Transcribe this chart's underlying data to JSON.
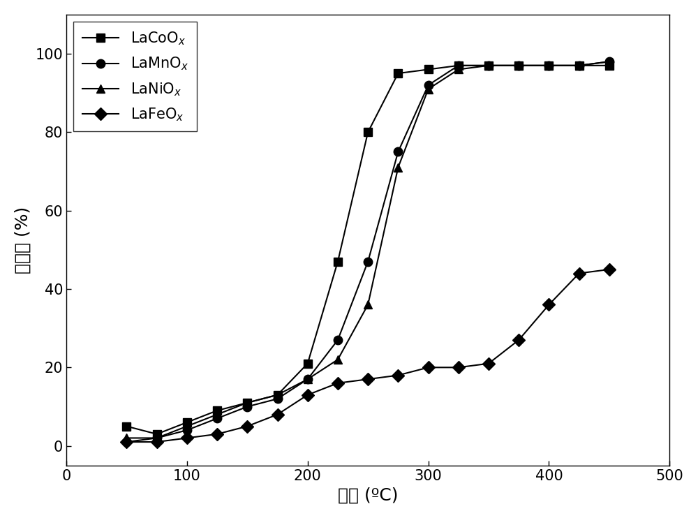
{
  "LaCoO": {
    "x": [
      50,
      75,
      100,
      125,
      150,
      175,
      200,
      225,
      250,
      275,
      300,
      325,
      350,
      375,
      400,
      425,
      450
    ],
    "y": [
      5,
      3,
      6,
      9,
      11,
      13,
      21,
      47,
      80,
      95,
      96,
      97,
      97,
      97,
      97,
      97,
      97
    ]
  },
  "LaMnO": {
    "x": [
      50,
      75,
      100,
      125,
      150,
      175,
      200,
      225,
      250,
      275,
      300,
      325,
      350,
      375,
      400,
      425,
      450
    ],
    "y": [
      1,
      2,
      4,
      7,
      10,
      12,
      17,
      27,
      47,
      75,
      92,
      97,
      97,
      97,
      97,
      97,
      98
    ]
  },
  "LaNiO": {
    "x": [
      50,
      75,
      100,
      125,
      150,
      175,
      200,
      225,
      250,
      275,
      300,
      325,
      350,
      375,
      400,
      425,
      450
    ],
    "y": [
      2,
      2,
      5,
      8,
      11,
      13,
      17,
      22,
      36,
      71,
      91,
      96,
      97,
      97,
      97,
      97,
      98
    ]
  },
  "LaFeO": {
    "x": [
      50,
      75,
      100,
      125,
      150,
      175,
      200,
      225,
      250,
      275,
      300,
      325,
      350,
      375,
      400,
      425,
      450
    ],
    "y": [
      1,
      1,
      2,
      3,
      5,
      8,
      13,
      16,
      17,
      18,
      20,
      20,
      21,
      27,
      36,
      44,
      45
    ]
  },
  "xlabel": "温度 (ºC)",
  "ylabel": "转化率 (%)",
  "xlim": [
    0,
    500
  ],
  "ylim": [
    -5,
    110
  ],
  "xticks": [
    0,
    100,
    200,
    300,
    400,
    500
  ],
  "yticks": [
    0,
    20,
    40,
    60,
    80,
    100
  ],
  "label_fontsize": 18,
  "tick_fontsize": 15,
  "legend_fontsize": 15,
  "linewidth": 1.5,
  "markersize": 9,
  "background_color": "#ffffff"
}
